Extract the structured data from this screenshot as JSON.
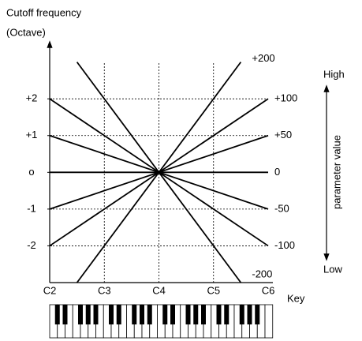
{
  "chart_data": {
    "type": "line",
    "title": "Cutoff frequency",
    "subtitle": "(Octave)",
    "x_label": "Key",
    "y2_label": "parameter value",
    "y2_high": "High",
    "y2_low": "Low",
    "xlim": [
      0,
      4
    ],
    "xticks": [
      {
        "value": 0,
        "label": "C2"
      },
      {
        "value": 1,
        "label": "C3"
      },
      {
        "value": 2,
        "label": "C4"
      },
      {
        "value": 3,
        "label": "C5"
      },
      {
        "value": 4,
        "label": "C6"
      }
    ],
    "ylim": [
      -3,
      3.4
    ],
    "yticks": [
      {
        "value": 2,
        "label": "+2"
      },
      {
        "value": 1,
        "label": "+1"
      },
      {
        "value": 0,
        "label": "o"
      },
      -1,
      -2
    ],
    "grid": true,
    "series": [
      {
        "name": "+200",
        "color": "#000000",
        "x": [
          0.5,
          3.5
        ],
        "values": [
          -3,
          3
        ]
      },
      {
        "name": "+100",
        "color": "#000000",
        "x": [
          0,
          4
        ],
        "values": [
          -2,
          2
        ]
      },
      {
        "name": "+50",
        "color": "#000000",
        "x": [
          0,
          4
        ],
        "values": [
          -1,
          1
        ]
      },
      {
        "name": "0",
        "color": "#000000",
        "x": [
          0,
          4
        ],
        "values": [
          0,
          0
        ]
      },
      {
        "name": "-50",
        "color": "#000000",
        "x": [
          0,
          4
        ],
        "values": [
          1,
          -1
        ]
      },
      {
        "name": "-100",
        "color": "#000000",
        "x": [
          0,
          4
        ],
        "values": [
          2,
          -2
        ]
      },
      {
        "name": "-200",
        "color": "#000000",
        "x": [
          0.5,
          3.5
        ],
        "values": [
          3,
          -3
        ]
      }
    ]
  }
}
